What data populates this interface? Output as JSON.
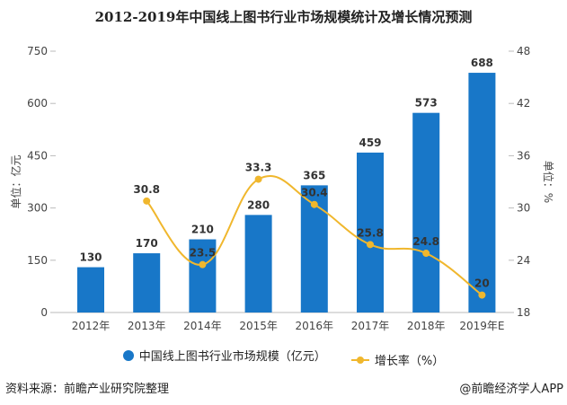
{
  "chart_data": {
    "type": "bar+line",
    "title": "2012-2019年中国线上图书行业市场规模统计及增长情况预测",
    "categories": [
      "2012年",
      "2013年",
      "2014年",
      "2015年",
      "2016年",
      "2017年",
      "2018年",
      "2019年E"
    ],
    "series": [
      {
        "name": "中国线上图书行业市场规模（亿元）",
        "type": "bar",
        "axis": "left",
        "values": [
          130,
          170,
          210,
          280,
          365,
          459,
          573,
          688
        ],
        "color": "#1877c8"
      },
      {
        "name": "增长率（%）",
        "type": "line",
        "smooth": true,
        "axis": "right",
        "values": [
          null,
          30.8,
          23.5,
          33.3,
          30.4,
          25.8,
          24.8,
          20
        ],
        "color": "#f0b72d"
      }
    ],
    "ylabel": "单位：亿元",
    "ylim": [
      0,
      750
    ],
    "yticks": [
      "0",
      "150",
      "300",
      "450",
      "600",
      "750"
    ],
    "y2label": "单位：%",
    "y2lim": [
      18,
      48
    ],
    "y2ticks": [
      "18",
      "24",
      "30",
      "36",
      "42",
      "48"
    ],
    "grid": false,
    "legend": "bottom"
  },
  "footer": {
    "source": "资料来源：前瞻产业研究院整理",
    "credit": "@前瞻经济学人APP"
  }
}
